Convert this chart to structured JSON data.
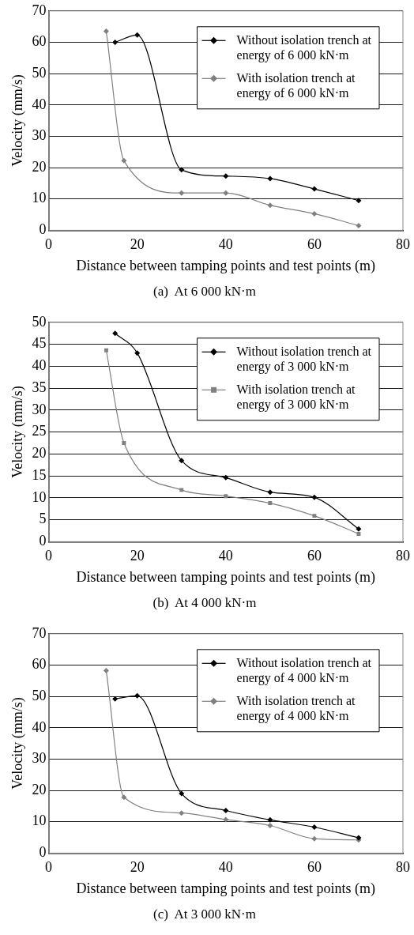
{
  "chart_data": [
    {
      "type": "line",
      "title": "(a)  At 6 000 kN·m",
      "xlabel": "Distance between tamping points and test points (m)",
      "ylabel": "Velocity (mm/s)",
      "xlim": [
        0,
        80
      ],
      "xticks": [
        0,
        20,
        40,
        60,
        80
      ],
      "ylim": [
        0,
        70
      ],
      "yticks": [
        0,
        10,
        20,
        30,
        40,
        50,
        60,
        70
      ],
      "grid": "y",
      "legend": "top right",
      "series": [
        {
          "name": "Without isolation trench at energy of 6 000 kN·m",
          "color": "#000000",
          "marker": "diamond",
          "x": [
            15,
            20,
            30,
            40,
            50,
            60,
            70
          ],
          "values": [
            60.0,
            62.3,
            19.3,
            17.3,
            16.5,
            13.2,
            9.5
          ]
        },
        {
          "name": "With isolation trench at energy of 6 000 kN·m",
          "color": "#808080",
          "marker": "diamond",
          "x": [
            13,
            17,
            30,
            40,
            50,
            60,
            70
          ],
          "values": [
            63.5,
            22.2,
            11.9,
            11.9,
            8.0,
            5.3,
            1.5
          ]
        }
      ]
    },
    {
      "type": "line",
      "title": "(b)  At 4 000 kN·m",
      "xlabel": "Distance between tamping points and test points (m)",
      "ylabel": "Velocity (mm/s)",
      "xlim": [
        0,
        80
      ],
      "xticks": [
        0,
        20,
        40,
        60,
        80
      ],
      "ylim": [
        0,
        50
      ],
      "yticks": [
        0,
        5,
        10,
        15,
        20,
        25,
        30,
        35,
        40,
        45,
        50
      ],
      "grid": "y",
      "legend": "top right",
      "series": [
        {
          "name": "Without isolation trench at energy of 3 000 kN·m",
          "color": "#000000",
          "marker": "diamond",
          "x": [
            15,
            20,
            30,
            40,
            50,
            60,
            70
          ],
          "values": [
            47.5,
            43.0,
            18.5,
            14.6,
            11.3,
            10.1,
            2.9
          ]
        },
        {
          "name": "With isolation trench at energy of 3 000 kN·m",
          "color": "#808080",
          "marker": "square",
          "x": [
            13,
            17,
            30,
            40,
            50,
            60,
            70
          ],
          "values": [
            43.6,
            22.5,
            11.8,
            10.4,
            8.8,
            5.9,
            1.8
          ]
        }
      ]
    },
    {
      "type": "line",
      "title": "(c)  At 3 000 kN·m",
      "xlabel": "Distance between tamping points and test points (m)",
      "ylabel": "Velocity (mm/s)",
      "xlim": [
        0,
        80
      ],
      "xticks": [
        0,
        20,
        40,
        60,
        80
      ],
      "ylim": [
        0,
        70
      ],
      "yticks": [
        0,
        10,
        20,
        30,
        40,
        50,
        60,
        70
      ],
      "grid": "y",
      "legend": "top right",
      "series": [
        {
          "name": "Without isolation trench at energy of 4 000 kN·m",
          "color": "#000000",
          "marker": "diamond",
          "x": [
            15,
            20,
            30,
            40,
            50,
            60,
            70
          ],
          "values": [
            49.2,
            50.2,
            19.0,
            13.6,
            10.6,
            8.3,
            4.9
          ]
        },
        {
          "name": "With isolation trench at energy of 4 000 kN·m",
          "color": "#808080",
          "marker": "diamond",
          "x": [
            13,
            17,
            30,
            40,
            50,
            60,
            70
          ],
          "values": [
            58.2,
            17.8,
            12.8,
            10.7,
            8.8,
            4.6,
            4.2
          ]
        }
      ]
    }
  ]
}
